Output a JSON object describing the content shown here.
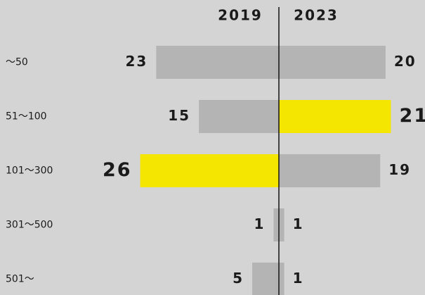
{
  "chart_data": {
    "type": "butterfly",
    "categories": [
      "〜50",
      "51〜100",
      "101〜300",
      "301〜500",
      "501〜"
    ],
    "series": [
      {
        "name": "2019",
        "color": "#b4b4b4",
        "colors": [
          "#b4b4b4",
          "#b4b4b4",
          "#f5e600",
          "#b4b4b4",
          "#b4b4b4"
        ],
        "values": [
          23,
          15,
          26,
          1,
          5
        ]
      },
      {
        "name": "2023",
        "color": "#b4b4b4",
        "colors": [
          "#b4b4b4",
          "#f5e600",
          "#b4b4b4",
          "#b4b4b4",
          "#b4b4b4"
        ],
        "values": [
          20,
          21,
          19,
          1,
          1
        ]
      }
    ],
    "xlim": [
      0,
      27
    ]
  }
}
